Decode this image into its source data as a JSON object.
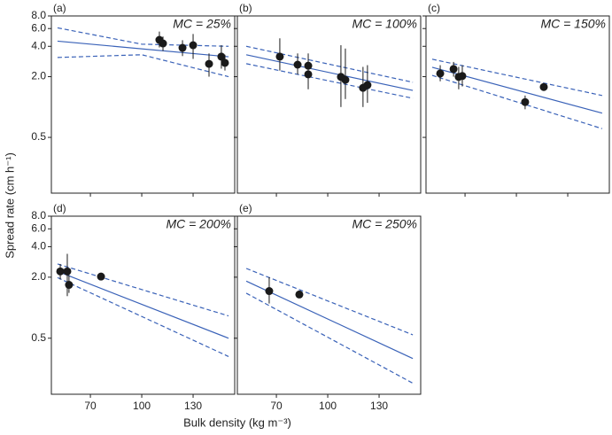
{
  "axes": {
    "x_label": "Bulk density (kg m⁻³)",
    "y_label": "Spread rate (cm h⁻¹)",
    "xlim": [
      47.2,
      154.3
    ],
    "xticks": [
      70,
      100,
      130
    ],
    "ylim": [
      0.14,
      8
    ],
    "ylog": true,
    "yticks": [
      0.5,
      {
        "value": 2,
        "label": "2.0"
      },
      {
        "value": 4,
        "label": "4.0"
      },
      {
        "value": 6,
        "label": "6.0"
      },
      {
        "value": 8,
        "label": "8.0"
      }
    ],
    "point_color": "#1a1a1a",
    "line_color": "#3a62b8"
  },
  "chart_data": [
    {
      "type": "scatter",
      "panel": "(a)",
      "title": "MC = 25%",
      "x": [
        110.3,
        112.4,
        123.8,
        130,
        139.3,
        146.5,
        148.6
      ],
      "values": [
        4.63,
        4.27,
        3.86,
        4.1,
        2.68,
        3.16,
        2.74
      ],
      "lower": [
        3.9,
        3.6,
        3.2,
        3.0,
        2.0,
        2.4,
        2.3
      ],
      "upper": [
        5.6,
        5.0,
        4.6,
        5.3,
        3.4,
        4.1,
        3.3
      ],
      "fit": {
        "x": [
          50.8,
          150.7
        ],
        "values": [
          4.5,
          3.15
        ]
      },
      "upper_band": {
        "x": [
          50.8,
          100,
          150.7
        ],
        "values": [
          6.1,
          4.2,
          4.0
        ]
      },
      "lower_band": {
        "x": [
          50.8,
          100,
          150.7
        ],
        "values": [
          3.1,
          3.3,
          2.0
        ]
      }
    },
    {
      "type": "scatter",
      "panel": "(b)",
      "title": "MC = 100%",
      "x": [
        72,
        82.4,
        88.6,
        88.6,
        107.7,
        110.3,
        120.6,
        123.2
      ],
      "values": [
        3.16,
        2.63,
        2.57,
        2.11,
        1.99,
        1.86,
        1.55,
        1.65
      ],
      "lower": [
        2.3,
        2.1,
        1.9,
        1.5,
        1.0,
        1.2,
        1.0,
        1.1
      ],
      "upper": [
        4.8,
        3.4,
        3.4,
        2.6,
        4.1,
        3.8,
        2.5,
        2.6
      ],
      "fit": {
        "x": [
          52.4,
          149.7
        ],
        "values": [
          3.3,
          1.46
        ]
      },
      "upper_band": {
        "x": [
          52.4,
          149.7
        ],
        "values": [
          4.0,
          1.76
        ]
      },
      "lower_band": {
        "x": [
          52.4,
          149.7
        ],
        "values": [
          2.69,
          1.22
        ]
      }
    },
    {
      "type": "scatter",
      "panel": "(c)",
      "title": "MC = 150%",
      "x": [
        55.5,
        63.3,
        66.3,
        68.4,
        105.1,
        116
      ],
      "values": [
        2.15,
        2.38,
        1.99,
        2.03,
        1.12,
        1.58
      ],
      "lower": [
        1.8,
        2.0,
        1.5,
        1.6,
        0.95,
        1.45
      ],
      "upper": [
        2.6,
        2.8,
        2.5,
        2.6,
        1.3,
        1.7
      ],
      "fit": {
        "x": [
          50.8,
          150.1
        ],
        "values": [
          2.48,
          0.87
        ]
      },
      "upper_band": {
        "x": [
          50.8,
          150.1
        ],
        "values": [
          2.98,
          1.3
        ]
      },
      "lower_band": {
        "x": [
          50.8,
          150.1
        ],
        "values": [
          2.06,
          0.61
        ]
      }
    },
    {
      "type": "scatter",
      "panel": "(d)",
      "title": "MC = 200%",
      "x": [
        52.4,
        56.5,
        57.5,
        76.2
      ],
      "values": [
        2.28,
        2.28,
        1.68,
        2.03
      ],
      "lower": [
        1.9,
        1.3,
        1.4,
        1.9
      ],
      "upper": [
        2.7,
        3.4,
        2.1,
        2.2
      ],
      "fit": {
        "x": [
          50.8,
          150.7
        ],
        "values": [
          2.28,
          0.5
        ]
      },
      "upper_band": {
        "x": [
          50.8,
          150.7
        ],
        "values": [
          2.7,
          0.83
        ]
      },
      "lower_band": {
        "x": [
          50.8,
          150.7
        ],
        "values": [
          1.98,
          0.33
        ]
      }
    },
    {
      "type": "scatter",
      "panel": "(e)",
      "title": "MC = 250%",
      "x": [
        65.8,
        83.4
      ],
      "values": [
        1.46,
        1.35
      ],
      "lower": [
        1.1,
        1.3
      ],
      "upper": [
        2.0,
        1.4
      ],
      "fit": {
        "x": [
          52.4,
          149.7
        ],
        "values": [
          1.83,
          0.315
        ]
      },
      "upper_band": {
        "x": [
          52.4,
          149.7
        ],
        "values": [
          2.44,
          0.54
        ]
      },
      "lower_band": {
        "x": [
          52.4,
          149.7
        ],
        "values": [
          1.39,
          0.18
        ]
      }
    }
  ]
}
